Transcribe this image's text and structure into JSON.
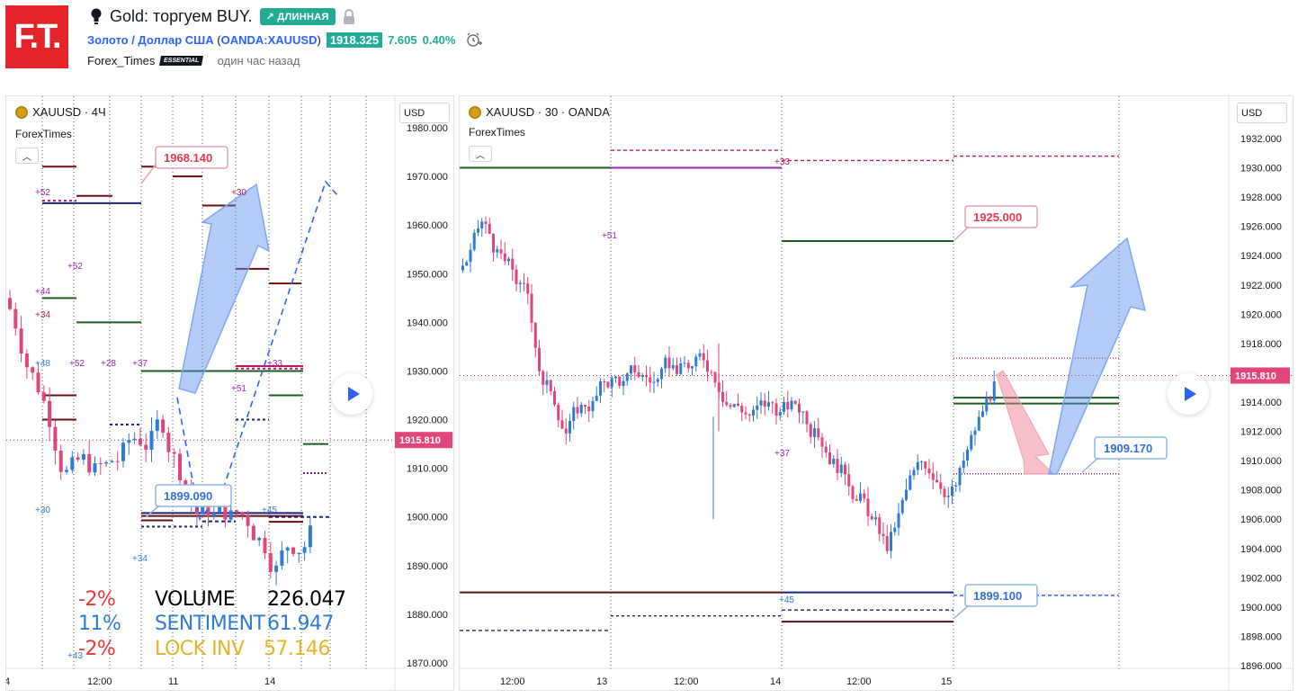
{
  "header": {
    "logo_text": "F.T.",
    "title": "Gold: торгуем BUY.",
    "direction_badge": "↗ ДЛИННАЯ",
    "symbol_name": "Золото / Доллар США",
    "symbol_open": "(",
    "symbol_ticker": "OANDA:XAUUSD",
    "symbol_close": ")",
    "price": "1918.325",
    "change": "7.605",
    "change_pct": "0.40%",
    "author": "Forex_Times",
    "author_badge": "ESSENTIAL",
    "time_ago": "один час назад"
  },
  "left_chart": {
    "legend": "XAUUSD · 4Ч",
    "sub_legend": "ForexTimes",
    "currency": "USD",
    "last_price": "1915.810",
    "y_ticks": [
      "1980.000",
      "1970.000",
      "1960.000",
      "1950.000",
      "1940.000",
      "1930.000",
      "1920.000",
      "1910.000",
      "1900.000",
      "1890.000",
      "1880.000",
      "1870.000"
    ],
    "x_ticks": [
      "4",
      "12:00",
      "11",
      "14"
    ],
    "callouts": [
      "1968.140",
      "1899.090"
    ],
    "small_labels": [
      "+56",
      "+52",
      "+52",
      "+44",
      "+34",
      "+48",
      "+52",
      "+28",
      "+37",
      "+30",
      "+33",
      "+51",
      "+45",
      "+30",
      "+34",
      "+43"
    ],
    "stats": {
      "row1": {
        "pct": "-2%",
        "label": "VOLUME",
        "value": "226.047"
      },
      "row2": {
        "pct": "11%",
        "label": "SENTIMENT",
        "value": "61.947"
      },
      "row3": {
        "pct": "-2%",
        "label": "LOCK INV",
        "value": "57.146"
      }
    },
    "colors": {
      "row1": "#e53935",
      "row2": "#2e7bd6",
      "row3": "#e6b422",
      "label1": "#000000"
    }
  },
  "right_chart": {
    "legend": "XAUUSD · 30 · OANDA",
    "sub_legend": "ForexTimes",
    "currency": "USD",
    "last_price": "1915.810",
    "y_ticks": [
      "1932.000",
      "1930.000",
      "1928.000",
      "1926.000",
      "1924.000",
      "1922.000",
      "1920.000",
      "1918.000",
      "1916.000",
      "1914.000",
      "1912.000",
      "1910.000",
      "1908.000",
      "1906.000",
      "1904.000",
      "1902.000",
      "1900.000",
      "1898.000",
      "1896.000"
    ],
    "x_ticks": [
      "12:00",
      "13",
      "12:00",
      "14",
      "12:00",
      "15"
    ],
    "callouts": [
      "1925.000",
      "1909.170",
      "1899.100"
    ],
    "small_labels": [
      "+33",
      "+51",
      "+37",
      "+45"
    ]
  },
  "chart_data": [
    {
      "type": "candlestick",
      "title": "XAUUSD · 4Ч",
      "ylim": [
        1868,
        1982
      ],
      "levels": [
        1968.14,
        1899.09
      ],
      "last": 1915.81
    },
    {
      "type": "candlestick",
      "title": "XAUUSD · 30 · OANDA",
      "ylim": [
        1895.5,
        1933
      ],
      "levels": [
        1925.0,
        1909.17,
        1899.1
      ],
      "last": 1915.81
    }
  ]
}
